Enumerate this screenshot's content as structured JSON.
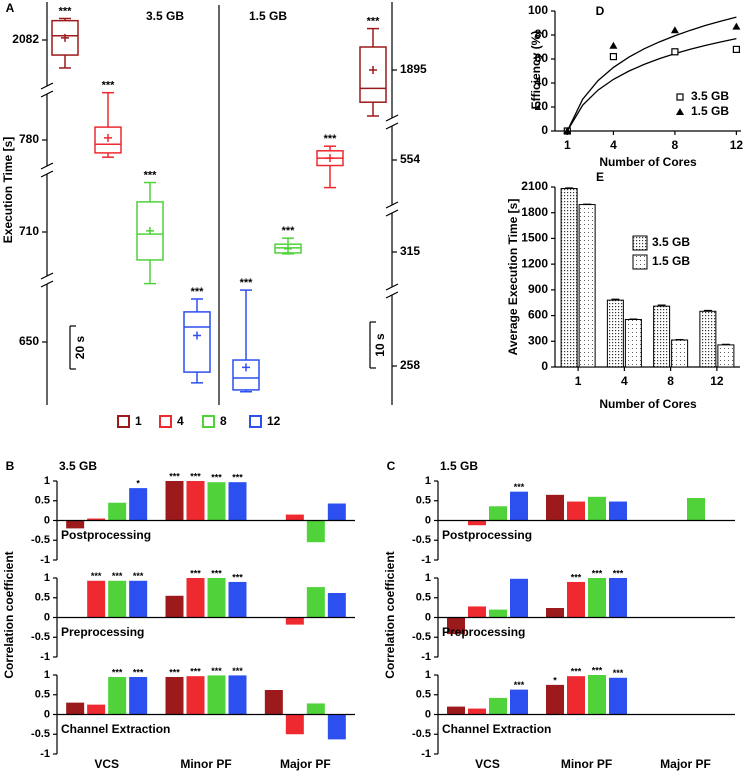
{
  "chart_data": [
    {
      "type": "box",
      "panel": "A",
      "ylabel": "Execution Time [s]",
      "series": [
        {
          "name": "1",
          "color": "#9c1a1c"
        },
        {
          "name": "4",
          "color": "#ee2a30"
        },
        {
          "name": "8",
          "color": "#4fd23a"
        },
        {
          "name": "12",
          "color": "#2c4ff0"
        }
      ],
      "groups": [
        {
          "name": "3.5 GB",
          "scalebar": {
            "value": 20,
            "label": "20 s"
          },
          "boxes": [
            {
              "tick": 2082,
              "min": 2069,
              "q1": 2075,
              "median": 2084,
              "q3": 2091,
              "max": 2092,
              "mean": 2083,
              "annotation": "***"
            },
            {
              "tick": 780,
              "min": 772,
              "q1": 774,
              "median": 778,
              "q3": 786,
              "max": 802,
              "mean": 781,
              "annotation": "***"
            },
            {
              "tick": 710,
              "min": 686,
              "q1": 697,
              "median": 709,
              "q3": 724,
              "max": 733,
              "mean": 710.5,
              "annotation": "***"
            },
            {
              "tick": 650,
              "min": 631,
              "q1": 636,
              "median": 657,
              "q3": 664,
              "max": 670,
              "mean": 653,
              "annotation": "***"
            }
          ]
        },
        {
          "name": "1.5 GB",
          "scalebar": {
            "value": 10,
            "label": "10 s"
          },
          "boxes": [
            {
              "tick": 1895,
              "min": 1885,
              "q1": 1888,
              "median": 1891,
              "q3": 1900,
              "max": 1904,
              "mean": 1895,
              "annotation": "***"
            },
            {
              "tick": 554,
              "min": 548,
              "q1": 552.8,
              "median": 554.4,
              "q3": 556,
              "max": 557,
              "mean": 554.4,
              "annotation": "***"
            },
            {
              "tick": 315,
              "min": 314.6,
              "q1": 314.8,
              "median": 315.9,
              "q3": 316.7,
              "max": 318,
              "mean": 315.7,
              "annotation": "***"
            },
            {
              "tick": 258,
              "min": 252.4,
              "q1": 252.8,
              "median": 255.4,
              "q3": 259.3,
              "max": 274.5,
              "mean": 257.7,
              "annotation": "***"
            }
          ]
        }
      ]
    },
    {
      "type": "scatter",
      "panel": "D",
      "xlabel": "Number of Cores",
      "ylabel": "Efficiency (%)",
      "x": [
        1,
        4,
        8,
        12
      ],
      "xlim": [
        0.2,
        12.3
      ],
      "ylim": [
        0,
        100
      ],
      "xticks": [
        1,
        4,
        8,
        12
      ],
      "yticks": [
        0,
        20,
        40,
        60,
        80,
        100
      ],
      "legend": "lower right",
      "series": [
        {
          "name": "3.5 GB",
          "color": "#000000",
          "marker": "square-open",
          "values": [
            0,
            62,
            66,
            68
          ],
          "fit": {
            "x": [
              1,
              2,
              3,
              4,
              5,
              6,
              7,
              8,
              9,
              10,
              11,
              12
            ],
            "values": [
              0,
              21.5,
              34.1,
              43.0,
              49.9,
              55.5,
              60.3,
              64.5,
              68.1,
              71.4,
              74.3,
              77.0
            ]
          }
        },
        {
          "name": "1.5 GB",
          "color": "#000000",
          "marker": "triangle",
          "values": [
            0,
            71,
            84,
            87
          ],
          "fit": {
            "x": [
              1,
              2,
              3,
              4,
              5,
              6,
              7,
              8,
              9,
              10,
              11,
              12
            ],
            "values": [
              0,
              26.5,
              42.0,
              53.0,
              61.5,
              68.5,
              74.3,
              79.4,
              83.9,
              88.0,
              91.6,
              94.9
            ]
          }
        }
      ]
    },
    {
      "type": "bar",
      "panel": "E",
      "xlabel": "Number of Cores",
      "ylabel": "Average Execution Time [s]",
      "categories": [
        "1",
        "4",
        "8",
        "12"
      ],
      "ylim": [
        0,
        2100
      ],
      "yticks": [
        0,
        300,
        600,
        900,
        1200,
        1500,
        1800,
        2100
      ],
      "legend": "upper right",
      "series": [
        {
          "name": "3.5 GB",
          "pattern": "dense-dots",
          "values": [
            2082,
            780,
            710,
            650
          ],
          "errors": [
            6,
            10,
            12,
            10
          ]
        },
        {
          "name": "1.5 GB",
          "pattern": "sparse-dots",
          "values": [
            1895,
            554,
            315,
            258
          ],
          "errors": [
            4,
            5,
            4,
            6
          ]
        }
      ]
    },
    {
      "type": "bar",
      "panel": "B",
      "subtitle": "3.5 GB",
      "ylabel": "Correlation coefficient",
      "categories": [
        "VCS",
        "Minor PF",
        "Major PF"
      ],
      "ylim": [
        -1,
        1
      ],
      "yticks": [
        -1,
        -0.5,
        0,
        0.5,
        1
      ],
      "colors": [
        "#9c1a1c",
        "#ee2a30",
        "#4fd23a",
        "#2c4ff0"
      ],
      "facets": [
        {
          "name": "Postprocessing",
          "series": [
            {
              "values": [
                -0.2,
                1,
                0
              ],
              "annotations": [
                null,
                "***",
                null
              ]
            },
            {
              "values": [
                0.05,
                1,
                0.15
              ],
              "annotations": [
                null,
                "***",
                null
              ]
            },
            {
              "values": [
                0.45,
                0.97,
                -0.55
              ],
              "annotations": [
                null,
                "***",
                null
              ]
            },
            {
              "values": [
                0.82,
                0.97,
                0.43
              ],
              "annotations": [
                "*",
                "***",
                null
              ]
            }
          ]
        },
        {
          "name": "Preprocessing",
          "series": [
            {
              "values": [
                0,
                0.55,
                0
              ],
              "annotations": [
                null,
                null,
                null
              ]
            },
            {
              "values": [
                0.93,
                1,
                -0.18
              ],
              "annotations": [
                "***",
                "***",
                null
              ]
            },
            {
              "values": [
                0.93,
                1,
                0.77
              ],
              "annotations": [
                "***",
                "***",
                null
              ]
            },
            {
              "values": [
                0.93,
                0.9,
                0.62
              ],
              "annotations": [
                "***",
                "***",
                null
              ]
            }
          ]
        },
        {
          "name": "Channel Extraction",
          "series": [
            {
              "values": [
                0.3,
                0.95,
                0.62
              ],
              "annotations": [
                null,
                "***",
                null
              ]
            },
            {
              "values": [
                0.25,
                0.97,
                -0.5
              ],
              "annotations": [
                null,
                "***",
                null
              ]
            },
            {
              "values": [
                0.95,
                0.99,
                0.28
              ],
              "annotations": [
                "***",
                "***",
                null
              ]
            },
            {
              "values": [
                0.95,
                0.99,
                -0.63
              ],
              "annotations": [
                "***",
                "***",
                null
              ]
            }
          ]
        }
      ]
    },
    {
      "type": "bar",
      "panel": "C",
      "subtitle": "1.5 GB",
      "ylabel": "Correlation coefficient",
      "categories": [
        "VCS",
        "Minor PF",
        "Major PF"
      ],
      "ylim": [
        -1,
        1
      ],
      "yticks": [
        -1,
        -0.5,
        0,
        0.5,
        1
      ],
      "colors": [
        "#9c1a1c",
        "#ee2a30",
        "#4fd23a",
        "#2c4ff0"
      ],
      "facets": [
        {
          "name": "Postprocessing",
          "series": [
            {
              "values": [
                0,
                0.65,
                0
              ],
              "annotations": [
                null,
                null,
                null
              ]
            },
            {
              "values": [
                -0.12,
                0.48,
                0
              ],
              "annotations": [
                null,
                null,
                null
              ]
            },
            {
              "values": [
                0.36,
                0.6,
                0.57
              ],
              "annotations": [
                null,
                null,
                null
              ]
            },
            {
              "values": [
                0.73,
                0.48,
                0
              ],
              "annotations": [
                "***",
                null,
                null
              ]
            }
          ]
        },
        {
          "name": "Preprocessing",
          "series": [
            {
              "values": [
                -0.42,
                0.24,
                0
              ],
              "annotations": [
                null,
                null,
                null
              ]
            },
            {
              "values": [
                0.28,
                0.9,
                0
              ],
              "annotations": [
                null,
                "***",
                null
              ]
            },
            {
              "values": [
                0.2,
                1,
                0
              ],
              "annotations": [
                null,
                "***",
                null
              ]
            },
            {
              "values": [
                0.98,
                1,
                0
              ],
              "annotations": [
                null,
                "***",
                null
              ]
            }
          ]
        },
        {
          "name": "Channel Extraction",
          "series": [
            {
              "values": [
                0.2,
                0.75,
                0
              ],
              "annotations": [
                null,
                "*",
                null
              ]
            },
            {
              "values": [
                0.15,
                0.97,
                0
              ],
              "annotations": [
                null,
                "***",
                null
              ]
            },
            {
              "values": [
                0.42,
                1,
                0
              ],
              "annotations": [
                null,
                "***",
                null
              ]
            },
            {
              "values": [
                0.63,
                0.93,
                0
              ],
              "annotations": [
                "***",
                "***",
                null
              ]
            }
          ]
        }
      ]
    }
  ]
}
